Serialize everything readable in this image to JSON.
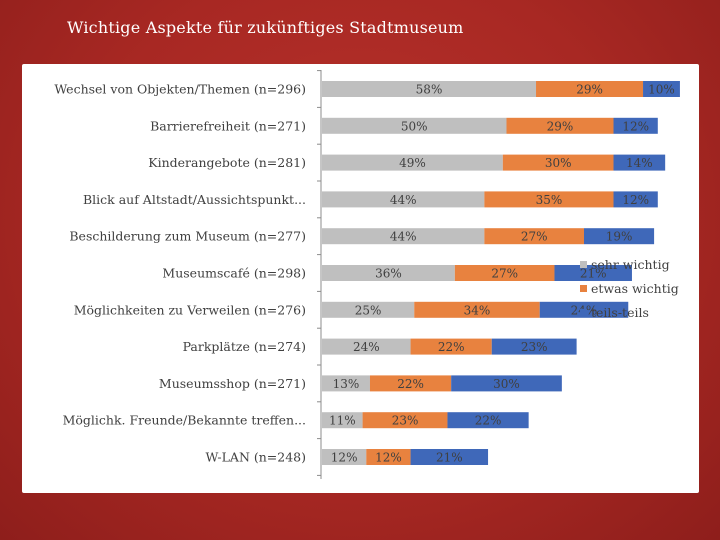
{
  "title": "Wichtige Aspekte für zukünftiges Stadtmuseum",
  "chart_data": {
    "type": "bar",
    "orientation": "horizontal",
    "stacked": true,
    "title": "Wichtige Aspekte für zukünftiges Stadtmuseum",
    "categories": [
      "Wechsel von Objekten/Themen (n=296)",
      "Barrierefreiheit (n=271)",
      "Kinderangebote (n=281)",
      "Blick auf Altstadt/Aussichtspunkt...",
      "Beschilderung zum Museum (n=277)",
      "Museumscafé (n=298)",
      "Möglichkeiten zu Verweilen (n=276)",
      "Parkplätze (n=274)",
      "Museumsshop (n=271)",
      "Möglichk. Freunde/Bekannte treffen...",
      "W-LAN (n=248)"
    ],
    "series": [
      {
        "name": "sehr wichtig",
        "color": "#bfbfbf",
        "values": [
          58,
          50,
          49,
          44,
          44,
          36,
          25,
          24,
          13,
          11,
          12
        ]
      },
      {
        "name": "etwas wichtig",
        "color": "#e8823f",
        "values": [
          29,
          29,
          30,
          35,
          27,
          27,
          34,
          22,
          22,
          23,
          12
        ]
      },
      {
        "name": "teils-teils",
        "color": "#3f68b9",
        "values": [
          10,
          12,
          14,
          12,
          19,
          21,
          24,
          23,
          30,
          22,
          21
        ]
      }
    ],
    "value_suffix": "%",
    "xlim": [
      0,
      100
    ],
    "legend_position": "right"
  }
}
